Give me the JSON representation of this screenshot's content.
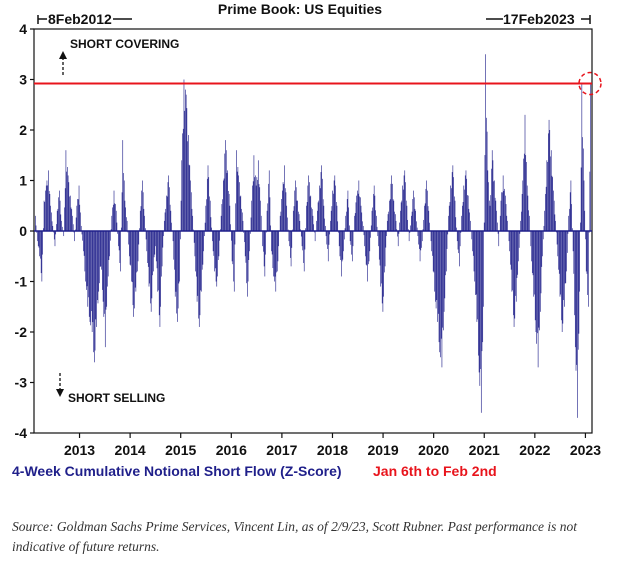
{
  "chart_data": {
    "type": "bar",
    "title": "Prime Book: US Equities",
    "range_start": "8Feb2012",
    "range_end": "17Feb2023",
    "annotation_up": "SHORT COVERING",
    "annotation_down": "SHORT SELLING",
    "series_label": "4-Week Cumulative Notional Short Flow (Z-Score)",
    "highlight_label": "Jan 6th to Feb 2nd",
    "ylim": [
      -4,
      4
    ],
    "yticks": [
      "4",
      "3",
      "2",
      "1",
      "0",
      "-1",
      "-2",
      "-3",
      "-4"
    ],
    "xticks": [
      "2013",
      "2014",
      "2015",
      "2016",
      "2017",
      "2018",
      "2019",
      "2020",
      "2021",
      "2022",
      "2023"
    ],
    "reference_line": 2.92,
    "x_start_year": 2012.1,
    "x_end_year": 2023.13,
    "points_per_year": 18,
    "values": [
      0.3,
      -0.2,
      -0.5,
      -1.0,
      0.6,
      0.9,
      1.2,
      0.5,
      0.1,
      -0.3,
      0.4,
      0.8,
      0.2,
      -0.1,
      1.6,
      1.1,
      0.7,
      0.3,
      -0.2,
      0.5,
      0.9,
      0.1,
      -0.4,
      -1.0,
      -1.5,
      -1.8,
      -2.0,
      -2.6,
      -1.9,
      -1.2,
      -0.7,
      -1.4,
      -2.3,
      -1.1,
      -0.5,
      0.3,
      0.8,
      0.4,
      -0.3,
      -0.8,
      1.8,
      0.6,
      0.2,
      -0.5,
      -1.0,
      -1.7,
      -1.2,
      -0.6,
      0.4,
      1.0,
      0.3,
      -0.4,
      -1.1,
      -1.6,
      -0.8,
      -0.3,
      -1.2,
      -1.9,
      -0.7,
      0.2,
      0.7,
      1.1,
      0.4,
      -0.2,
      -1.3,
      -1.8,
      -1.0,
      1.4,
      3.0,
      2.7,
      1.9,
      1.0,
      0.3,
      -0.5,
      -1.4,
      -1.9,
      -1.2,
      -0.4,
      0.5,
      1.3,
      0.6,
      -0.2,
      -0.8,
      -1.1,
      -0.5,
      0.3,
      1.0,
      1.8,
      1.2,
      0.5,
      -0.6,
      -1.2,
      1.6,
      1.1,
      0.7,
      0.2,
      -0.5,
      -1.3,
      -0.4,
      0.6,
      1.5,
      0.9,
      1.4,
      0.6,
      -0.3,
      -0.9,
      0.4,
      1.2,
      -0.4,
      -0.9,
      -1.2,
      -0.6,
      0.3,
      0.8,
      1.3,
      0.5,
      -0.2,
      -0.7,
      0.4,
      1.0,
      0.6,
      0.2,
      -0.3,
      -0.8,
      0.5,
      1.1,
      0.7,
      0.3,
      -0.2,
      0.4,
      0.9,
      1.3,
      0.5,
      -0.1,
      -0.6,
      0.2,
      0.8,
      1.1,
      0.5,
      -0.3,
      -0.9,
      -0.4,
      0.3,
      0.8,
      -0.2,
      -0.6,
      0.3,
      0.7,
      1.0,
      0.5,
      0.1,
      -0.5,
      -1.0,
      -0.4,
      0.4,
      0.9,
      0.3,
      -0.3,
      -1.1,
      -1.6,
      -0.7,
      0.2,
      0.6,
      1.1,
      0.6,
      0.2,
      -0.3,
      0.4,
      0.9,
      1.2,
      0.5,
      -0.2,
      0.3,
      0.8,
      0.4,
      -0.1,
      -0.6,
      -0.2,
      0.5,
      1.0,
      0.4,
      -0.2,
      -0.8,
      -1.4,
      -1.8,
      -2.4,
      -2.7,
      -1.6,
      -0.8,
      0.3,
      0.9,
      1.3,
      0.6,
      -0.2,
      -0.7,
      0.3,
      0.9,
      1.2,
      0.7,
      0.2,
      -0.4,
      -1.0,
      -1.8,
      -2.8,
      -3.6,
      -1.5,
      3.5,
      1.2,
      0.5,
      1.6,
      1.0,
      0.4,
      -0.3,
      0.6,
      1.1,
      0.7,
      0.2,
      -0.4,
      -1.2,
      -1.9,
      -1.4,
      -0.6,
      0.2,
      1.0,
      2.3,
      0.9,
      0.3,
      -0.6,
      -1.3,
      -2.0,
      -2.7,
      -1.6,
      -0.5,
      0.4,
      1.4,
      2.2,
      1.6,
      0.8,
      0.2,
      -0.5,
      -1.3,
      -2.0,
      -1.5,
      -0.8,
      0.3,
      1.0,
      -0.4,
      -2.3,
      -3.7,
      -1.2,
      2.9,
      1.0,
      -0.8,
      -1.5,
      2.9
    ],
    "highlight_value": 2.92
  },
  "footer": {
    "source": "Source: Goldman Sachs Prime Services, Vincent Lin, as of 2/9/23, Scott Rubner. Past performance is not indicative of future returns."
  },
  "colors": {
    "bar": "#1f1f8a",
    "reference_line": "#e8141c",
    "highlight_circle": "#e8141c",
    "text_blue": "#1f1f8a",
    "text_red": "#e8141c"
  }
}
